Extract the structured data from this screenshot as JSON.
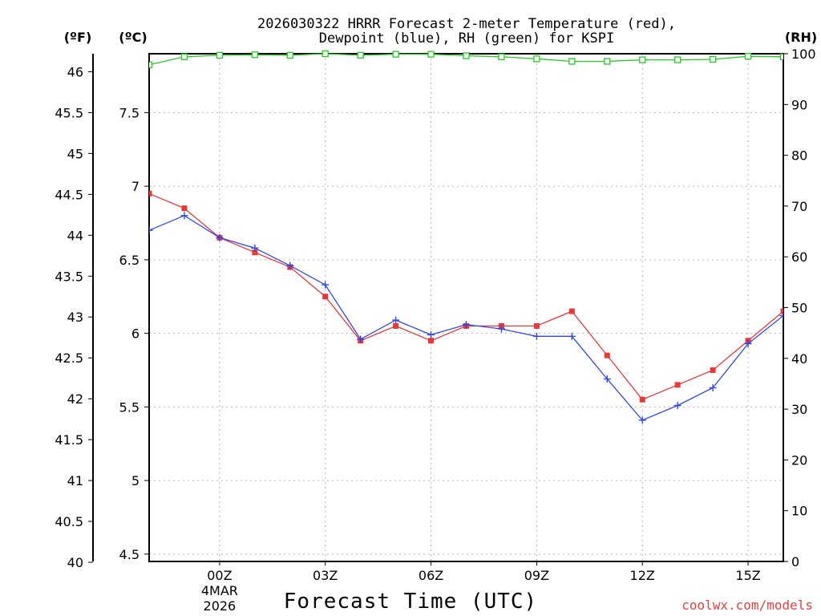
{
  "chart_data": {
    "type": "line",
    "title_line1": "2026030322 HRRR Forecast 2-meter Temperature (red),",
    "title_line2": "Dewpoint (blue), RH (green) for KSPI",
    "xlabel": "Forecast Time (UTC)",
    "left_outer_unit": "(ºF)",
    "left_inner_unit": "(ºC)",
    "right_unit": "(RH)",
    "credit": "coolwx.com/models",
    "credit_color": "#e84040",
    "x_hours": [
      22,
      23,
      24,
      25,
      26,
      27,
      28,
      29,
      30,
      31,
      32,
      33,
      34,
      35,
      36,
      37,
      38,
      39,
      40
    ],
    "x_ticks": [
      {
        "hour": 24,
        "label": "00Z",
        "sub1": "4MAR",
        "sub2": "2026"
      },
      {
        "hour": 27,
        "label": "03Z"
      },
      {
        "hour": 30,
        "label": "06Z"
      },
      {
        "hour": 33,
        "label": "09Z"
      },
      {
        "hour": 36,
        "label": "12Z"
      },
      {
        "hour": 39,
        "label": "15Z"
      }
    ],
    "xlim": [
      22,
      40
    ],
    "ylim_c": [
      4.45,
      7.9
    ],
    "ylim_f": [
      40.01,
      46.22
    ],
    "ylim_rh": [
      0,
      100
    ],
    "c_ticks": [
      "4.5",
      "5",
      "5.5",
      "6",
      "6.5",
      "7",
      "7.5"
    ],
    "f_ticks": [
      "40",
      "40.5",
      "41",
      "41.5",
      "42",
      "42.5",
      "43",
      "43.5",
      "44",
      "44.5",
      "45",
      "45.5",
      "46"
    ],
    "rh_ticks": [
      "0",
      "10",
      "20",
      "30",
      "40",
      "50",
      "60",
      "70",
      "80",
      "90",
      "100"
    ],
    "grid": true,
    "series": [
      {
        "name": "Temperature",
        "unit": "C",
        "color": "#e83838",
        "marker": "filled-square",
        "values": [
          6.95,
          6.85,
          6.65,
          6.55,
          6.45,
          6.25,
          5.95,
          6.05,
          5.95,
          6.05,
          6.05,
          6.05,
          6.15,
          5.85,
          5.55,
          5.65,
          5.75,
          5.95,
          6.15
        ]
      },
      {
        "name": "Dewpoint",
        "unit": "C",
        "color": "#3048e8",
        "marker": "plus",
        "values": [
          6.7,
          6.8,
          6.65,
          6.58,
          6.46,
          6.33,
          5.96,
          6.09,
          5.99,
          6.06,
          6.03,
          5.98,
          5.98,
          5.69,
          5.41,
          5.51,
          5.63,
          5.93,
          6.12
        ]
      },
      {
        "name": "RH",
        "unit": "%",
        "color": "#22cc22",
        "marker": "open-square",
        "values": [
          97.8,
          99.4,
          99.7,
          99.8,
          99.7,
          100.0,
          99.7,
          99.9,
          99.9,
          99.6,
          99.4,
          99.0,
          98.5,
          98.5,
          98.8,
          98.8,
          98.9,
          99.5,
          99.4
        ]
      }
    ]
  }
}
